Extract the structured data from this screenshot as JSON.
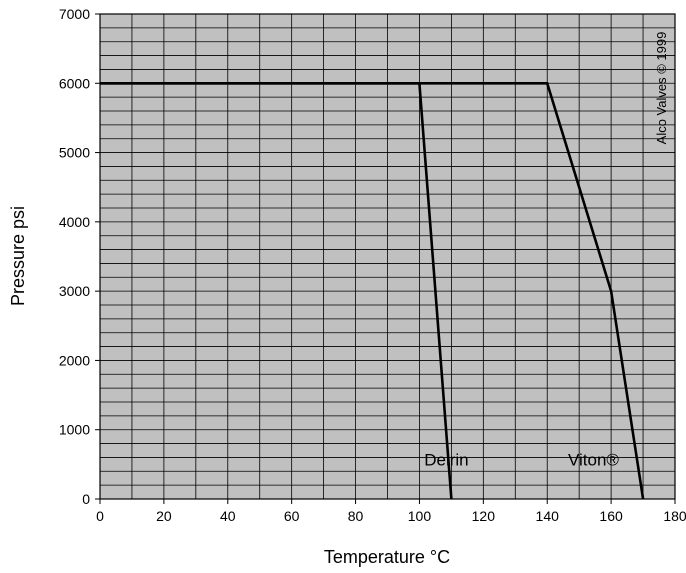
{
  "chart_data": {
    "type": "line",
    "xlabel": "Temperature °C",
    "ylabel": "Pressure psi",
    "xlim": [
      0,
      180
    ],
    "ylim": [
      0,
      7000
    ],
    "x_ticks": [
      0,
      20,
      40,
      60,
      80,
      100,
      120,
      140,
      160,
      180
    ],
    "y_ticks": [
      0,
      1000,
      2000,
      3000,
      4000,
      5000,
      6000,
      7000
    ],
    "x_minor_step": 10,
    "y_minor_step": 200,
    "grid": true,
    "plot_background": "#c0c0c0",
    "line_color": "#000000",
    "series": [
      {
        "name": "Delrin",
        "points": [
          [
            0,
            6000
          ],
          [
            100,
            6000
          ],
          [
            110,
            0
          ]
        ]
      },
      {
        "name": "Viton®",
        "points": [
          [
            0,
            6000
          ],
          [
            140,
            6000
          ],
          [
            160,
            3000
          ],
          [
            170,
            0
          ]
        ]
      }
    ],
    "annotations": [
      {
        "text": "Delrin",
        "x": 101.5,
        "y": 480
      },
      {
        "text": "Viton®",
        "x": 146.5,
        "y": 480
      }
    ],
    "copyright": "Alco Valves © 1999"
  }
}
